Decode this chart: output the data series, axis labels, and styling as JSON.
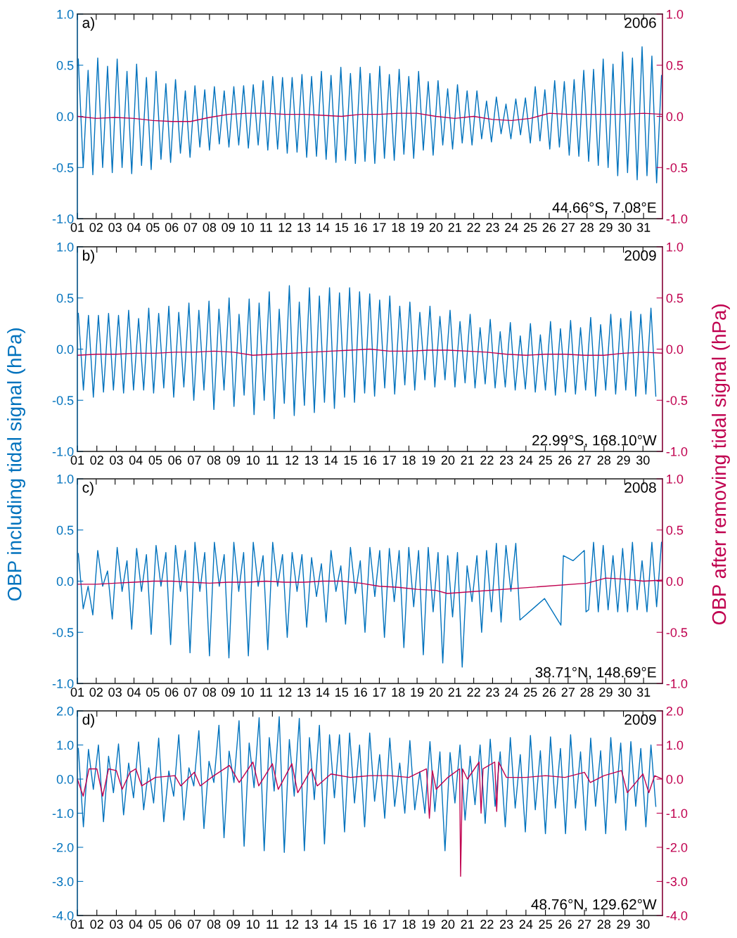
{
  "chart_data": [
    {
      "type": "line",
      "xlim": [
        1,
        32
      ],
      "ylim": [
        -1,
        1
      ],
      "y2lim": [
        -1,
        1
      ],
      "xticks": [
        {
          "value": 1,
          "label": "01"
        },
        {
          "value": 2,
          "label": "02"
        },
        {
          "value": 3,
          "label": "03"
        },
        {
          "value": 4,
          "label": "04"
        },
        {
          "value": 5,
          "label": "05"
        },
        {
          "value": 6,
          "label": "06"
        },
        {
          "value": 7,
          "label": "07"
        },
        {
          "value": 8,
          "label": "08"
        },
        {
          "value": 9,
          "label": "09"
        },
        10,
        11,
        12,
        13,
        14,
        15,
        16,
        17,
        18,
        19,
        20,
        21,
        22,
        23,
        24,
        25,
        26,
        27,
        28,
        29,
        30,
        31
      ],
      "yticks": [
        {
          "value": -1,
          "label": "-1.0"
        },
        {
          "value": -0.5,
          "label": "-0.5"
        },
        {
          "value": 0,
          "label": "0.0"
        },
        {
          "value": 0.5,
          "label": "0.5"
        },
        {
          "value": 1,
          "label": "1.0"
        }
      ],
      "y2ticks": [
        {
          "value": -1,
          "label": "-1.0"
        },
        {
          "value": -0.5,
          "label": "-0.5"
        },
        {
          "value": 0,
          "label": "0.0"
        },
        {
          "value": 0.5,
          "label": "0.5"
        },
        {
          "value": 1,
          "label": "1.0"
        }
      ],
      "annotations": [
        "a)",
        "2006",
        "44.66°S, 7.08°E"
      ],
      "x": [
        1.05,
        1.31,
        1.57,
        1.82,
        2.08,
        2.34,
        2.6,
        2.85,
        3.11,
        3.37,
        3.63,
        3.88,
        4.14,
        4.4,
        4.66,
        4.91,
        5.17,
        5.43,
        5.69,
        5.94,
        6.2,
        6.46,
        6.72,
        6.97,
        7.23,
        7.49,
        7.75,
        8.0,
        8.26,
        8.52,
        8.78,
        9.03,
        9.29,
        9.55,
        9.81,
        10.06,
        10.32,
        10.58,
        10.84,
        11.09,
        11.35,
        11.61,
        11.87,
        12.12,
        12.38,
        12.64,
        12.9,
        13.15,
        13.41,
        13.67,
        13.93,
        14.18,
        14.44,
        14.7,
        14.96,
        15.21,
        15.47,
        15.73,
        15.99,
        16.24,
        16.5,
        16.76,
        17.02,
        17.27,
        17.53,
        17.79,
        18.05,
        18.3,
        18.56,
        18.82,
        19.08,
        19.33,
        19.59,
        19.85,
        20.11,
        20.36,
        20.62,
        20.88,
        21.14,
        21.39,
        21.65,
        21.91,
        22.17,
        22.42,
        22.68,
        22.94,
        23.2,
        23.45,
        23.71,
        23.97,
        24.23,
        24.48,
        24.74,
        25.0,
        25.26,
        25.51,
        25.77,
        26.03,
        26.29,
        26.54,
        26.8,
        27.06,
        27.32,
        27.57,
        27.83,
        28.09,
        28.35,
        28.6,
        28.86,
        29.12,
        29.38,
        29.63,
        29.89,
        30.15,
        30.41,
        30.66,
        30.92,
        31.18,
        31.44,
        31.69,
        31.95
      ],
      "series": [
        {
          "color": "#0072bd",
          "values": [
            0.56,
            -0.5,
            0.45,
            -0.57,
            0.57,
            -0.5,
            0.49,
            -0.55,
            0.56,
            -0.5,
            0.44,
            -0.56,
            0.51,
            -0.48,
            0.38,
            -0.52,
            0.44,
            -0.42,
            0.32,
            -0.45,
            0.36,
            -0.36,
            0.25,
            -0.4,
            0.3,
            -0.3,
            0.26,
            -0.33,
            0.29,
            -0.27,
            0.25,
            -0.3,
            0.29,
            -0.28,
            0.3,
            -0.31,
            0.31,
            -0.28,
            0.35,
            -0.33,
            0.39,
            -0.32,
            0.38,
            -0.36,
            0.38,
            -0.35,
            0.41,
            -0.4,
            0.39,
            -0.39,
            0.44,
            -0.42,
            0.4,
            -0.45,
            0.48,
            -0.43,
            0.42,
            -0.46,
            0.48,
            -0.44,
            0.42,
            -0.46,
            0.49,
            -0.41,
            0.41,
            -0.43,
            0.46,
            -0.37,
            0.39,
            -0.41,
            0.44,
            -0.33,
            0.34,
            -0.38,
            0.35,
            -0.28,
            0.27,
            -0.32,
            0.31,
            -0.26,
            0.25,
            -0.28,
            0.25,
            -0.22,
            0.15,
            -0.25,
            0.19,
            -0.17,
            0.12,
            -0.22,
            0.17,
            -0.18,
            0.18,
            -0.26,
            0.29,
            -0.24,
            0.26,
            -0.32,
            0.35,
            -0.3,
            0.34,
            -0.38,
            0.36,
            -0.39,
            0.45,
            -0.44,
            0.46,
            -0.48,
            0.56,
            -0.5,
            0.51,
            -0.58,
            0.63,
            -0.55,
            0.57,
            -0.62,
            0.68,
            -0.58,
            0.59,
            -0.65,
            0.4
          ]
        },
        {
          "color": "#c0004f",
          "axis": "y2",
          "x": [
            1,
            2,
            3,
            4,
            5,
            6,
            7,
            8,
            9,
            10,
            11,
            12,
            13,
            14,
            15,
            16,
            17,
            18,
            19,
            20,
            21,
            22,
            23,
            24,
            25,
            26,
            27,
            28,
            29,
            30,
            31,
            32
          ],
          "values": [
            0.0,
            -0.02,
            -0.01,
            -0.02,
            -0.04,
            -0.05,
            -0.05,
            -0.01,
            0.02,
            0.03,
            0.03,
            0.02,
            0.02,
            0.01,
            0.0,
            0.02,
            0.02,
            0.03,
            0.03,
            0.0,
            -0.02,
            0.0,
            -0.03,
            -0.04,
            -0.02,
            0.03,
            0.02,
            0.02,
            0.02,
            0.02,
            0.03,
            0.02
          ]
        }
      ]
    },
    {
      "type": "line",
      "xlim": [
        1,
        31
      ],
      "ylim": [
        -1,
        1
      ],
      "y2lim": [
        -1,
        1
      ],
      "ylabel": "OBP including tidal signal (hPa)",
      "y2label": "OBP after removing tidal signal (hPa)",
      "xticks": [
        {
          "value": 1,
          "label": "01"
        },
        {
          "value": 2,
          "label": "02"
        },
        {
          "value": 3,
          "label": "03"
        },
        {
          "value": 4,
          "label": "04"
        },
        {
          "value": 5,
          "label": "05"
        },
        {
          "value": 6,
          "label": "06"
        },
        {
          "value": 7,
          "label": "07"
        },
        {
          "value": 8,
          "label": "08"
        },
        {
          "value": 9,
          "label": "09"
        },
        10,
        11,
        12,
        13,
        14,
        15,
        16,
        17,
        18,
        19,
        20,
        21,
        22,
        23,
        24,
        25,
        26,
        27,
        28,
        29,
        30
      ],
      "yticks": [
        {
          "value": -1,
          "label": "-1.0"
        },
        {
          "value": -0.5,
          "label": "-0.5"
        },
        {
          "value": 0,
          "label": "0.0"
        },
        {
          "value": 0.5,
          "label": "0.5"
        },
        {
          "value": 1,
          "label": "1.0"
        }
      ],
      "y2ticks": [
        {
          "value": -1,
          "label": "-1.0"
        },
        {
          "value": -0.5,
          "label": "-0.5"
        },
        {
          "value": 0,
          "label": "0.0"
        },
        {
          "value": 0.5,
          "label": "0.5"
        },
        {
          "value": 1,
          "label": "1.0"
        }
      ],
      "annotations": [
        "b)",
        "2009",
        "22.99°S, 168.10°W"
      ],
      "x": [
        1.05,
        1.31,
        1.57,
        1.82,
        2.08,
        2.34,
        2.6,
        2.85,
        3.11,
        3.37,
        3.63,
        3.88,
        4.14,
        4.4,
        4.66,
        4.91,
        5.17,
        5.43,
        5.69,
        5.94,
        6.2,
        6.46,
        6.72,
        6.97,
        7.23,
        7.49,
        7.75,
        8.0,
        8.26,
        8.52,
        8.78,
        9.03,
        9.29,
        9.55,
        9.81,
        10.06,
        10.32,
        10.58,
        10.84,
        11.09,
        11.35,
        11.61,
        11.87,
        12.12,
        12.38,
        12.64,
        12.9,
        13.15,
        13.41,
        13.67,
        13.93,
        14.18,
        14.44,
        14.7,
        14.96,
        15.21,
        15.47,
        15.73,
        15.99,
        16.24,
        16.5,
        16.76,
        17.02,
        17.27,
        17.53,
        17.79,
        18.05,
        18.3,
        18.56,
        18.82,
        19.08,
        19.33,
        19.59,
        19.85,
        20.11,
        20.36,
        20.62,
        20.88,
        21.14,
        21.39,
        21.65,
        21.91,
        22.17,
        22.42,
        22.68,
        22.94,
        23.2,
        23.45,
        23.71,
        23.97,
        24.23,
        24.48,
        24.74,
        25.0,
        25.26,
        25.51,
        25.77,
        26.03,
        26.29,
        26.54,
        26.8,
        27.06,
        27.32,
        27.57,
        27.83,
        28.09,
        28.35,
        28.6,
        28.86,
        29.12,
        29.38,
        29.63,
        29.89,
        30.15,
        30.41,
        30.66
      ],
      "series": [
        {
          "color": "#0072bd",
          "values": [
            0.35,
            -0.4,
            0.33,
            -0.47,
            0.33,
            -0.42,
            0.35,
            -0.4,
            0.33,
            -0.43,
            0.38,
            -0.4,
            0.3,
            -0.4,
            0.4,
            -0.43,
            0.35,
            -0.38,
            0.42,
            -0.47,
            0.36,
            -0.37,
            0.45,
            -0.5,
            0.38,
            -0.4,
            0.47,
            -0.59,
            0.39,
            -0.4,
            0.5,
            -0.56,
            0.34,
            -0.45,
            0.49,
            -0.64,
            0.45,
            -0.5,
            0.56,
            -0.68,
            0.39,
            -0.53,
            0.62,
            -0.65,
            0.46,
            -0.55,
            0.6,
            -0.62,
            0.52,
            -0.52,
            0.6,
            -0.58,
            0.55,
            -0.47,
            0.6,
            -0.52,
            0.56,
            -0.43,
            0.54,
            -0.46,
            0.48,
            -0.38,
            0.52,
            -0.44,
            0.42,
            -0.35,
            0.46,
            -0.4,
            0.36,
            -0.3,
            0.42,
            -0.37,
            0.32,
            -0.3,
            0.38,
            -0.37,
            0.27,
            -0.33,
            0.34,
            -0.38,
            0.21,
            -0.34,
            0.29,
            -0.38,
            0.17,
            -0.37,
            0.26,
            -0.4,
            0.13,
            -0.39,
            0.25,
            -0.42,
            0.14,
            -0.4,
            0.27,
            -0.45,
            0.2,
            -0.42,
            0.28,
            -0.44,
            0.21,
            -0.4,
            0.31,
            -0.46,
            0.24,
            -0.4,
            0.34,
            -0.44,
            0.3,
            -0.4,
            0.37,
            -0.46,
            0.34,
            -0.44,
            0.4,
            -0.46
          ]
        },
        {
          "color": "#c0004f",
          "axis": "y2",
          "x": [
            1,
            2,
            3,
            4,
            5,
            6,
            7,
            8,
            9,
            10,
            11,
            12,
            13,
            14,
            15,
            16,
            17,
            18,
            19,
            20,
            21,
            22,
            23,
            24,
            25,
            26,
            27,
            28,
            29,
            30,
            31
          ],
          "values": [
            -0.06,
            -0.05,
            -0.05,
            -0.04,
            -0.04,
            -0.03,
            -0.03,
            -0.02,
            -0.03,
            -0.06,
            -0.05,
            -0.04,
            -0.03,
            -0.02,
            -0.01,
            0.0,
            -0.02,
            -0.02,
            -0.01,
            -0.01,
            -0.02,
            -0.03,
            -0.05,
            -0.06,
            -0.05,
            -0.05,
            -0.06,
            -0.06,
            -0.04,
            -0.03,
            -0.04
          ]
        }
      ]
    },
    {
      "type": "line",
      "xlim": [
        1,
        32
      ],
      "ylim": [
        -1,
        1
      ],
      "y2lim": [
        -1,
        1
      ],
      "xticks": [
        {
          "value": 1,
          "label": "01"
        },
        {
          "value": 2,
          "label": "02"
        },
        {
          "value": 3,
          "label": "03"
        },
        {
          "value": 4,
          "label": "04"
        },
        {
          "value": 5,
          "label": "05"
        },
        {
          "value": 6,
          "label": "06"
        },
        {
          "value": 7,
          "label": "07"
        },
        {
          "value": 8,
          "label": "08"
        },
        {
          "value": 9,
          "label": "09"
        },
        10,
        11,
        12,
        13,
        14,
        15,
        16,
        17,
        18,
        19,
        20,
        21,
        22,
        23,
        24,
        25,
        26,
        27,
        28,
        29,
        30,
        31
      ],
      "yticks": [
        {
          "value": -1,
          "label": "-1.0"
        },
        {
          "value": -0.5,
          "label": "-0.5"
        },
        {
          "value": 0,
          "label": "0.0"
        },
        {
          "value": 0.5,
          "label": "0.5"
        },
        {
          "value": 1,
          "label": "1.0"
        }
      ],
      "y2ticks": [
        {
          "value": -1,
          "label": "-1.0"
        },
        {
          "value": -0.5,
          "label": "-0.5"
        },
        {
          "value": 0,
          "label": "0.0"
        },
        {
          "value": 0.5,
          "label": "0.5"
        },
        {
          "value": 1,
          "label": "1.0"
        }
      ],
      "annotations": [
        "c)",
        "2008",
        "38.71°N, 148.69°E"
      ],
      "series": [
        {
          "color": "#0072bd",
          "x": [
            1.05,
            1.31,
            1.57,
            1.82,
            2.08,
            2.34,
            2.6,
            2.85,
            3.11,
            3.37,
            3.63,
            3.88,
            4.14,
            4.4,
            4.66,
            4.91,
            5.17,
            5.43,
            5.69,
            5.94,
            6.2,
            6.46,
            6.72,
            6.97,
            7.23,
            7.49,
            7.75,
            8.0,
            8.26,
            8.52,
            8.78,
            9.03,
            9.29,
            9.55,
            9.81,
            10.06,
            10.32,
            10.58,
            10.84,
            11.09,
            11.35,
            11.61,
            11.87,
            12.12,
            12.38,
            12.64,
            12.9,
            13.15,
            13.41,
            13.67,
            13.93,
            14.18,
            14.44,
            14.7,
            14.96,
            15.21,
            15.47,
            15.73,
            15.99,
            16.24,
            16.5,
            16.76,
            17.02,
            17.27,
            17.53,
            17.79,
            18.05,
            18.3,
            18.56,
            18.82,
            19.08,
            19.33,
            19.59,
            19.85,
            20.11,
            20.36,
            20.62,
            20.88,
            21.14,
            21.39,
            21.65,
            21.91,
            22.17,
            22.42,
            22.68,
            22.94,
            23.2,
            23.45,
            23.71,
            23.97,
            24.23,
            24.45,
            25.75,
            26.62,
            26.75,
            27.26,
            27.86,
            27.95,
            28.09,
            28.35,
            28.6,
            28.86,
            29.12,
            29.38,
            29.63,
            29.89,
            30.15,
            30.41,
            30.66,
            30.92,
            31.18,
            31.44,
            31.69,
            31.95
          ],
          "values": [
            0.27,
            -0.27,
            -0.05,
            -0.33,
            0.3,
            -0.05,
            0.1,
            -0.37,
            0.33,
            -0.1,
            0.2,
            -0.47,
            0.32,
            -0.1,
            0.26,
            -0.52,
            0.35,
            -0.05,
            0.28,
            -0.62,
            0.35,
            -0.1,
            0.3,
            -0.7,
            0.38,
            -0.1,
            0.28,
            -0.73,
            0.38,
            -0.05,
            0.26,
            -0.75,
            0.38,
            -0.1,
            0.28,
            -0.73,
            0.38,
            -0.05,
            0.25,
            -0.67,
            0.38,
            -0.05,
            0.26,
            -0.55,
            0.28,
            -0.1,
            0.26,
            -0.45,
            0.23,
            -0.15,
            0.17,
            -0.4,
            0.3,
            -0.1,
            0.15,
            -0.42,
            0.33,
            -0.12,
            0.2,
            -0.5,
            0.33,
            -0.15,
            0.3,
            -0.55,
            0.32,
            -0.2,
            0.3,
            -0.65,
            0.33,
            -0.25,
            0.3,
            -0.72,
            0.33,
            -0.3,
            0.28,
            -0.8,
            0.25,
            -0.35,
            0.28,
            -0.84,
            0.15,
            -0.2,
            0.25,
            -0.5,
            0.3,
            -0.3,
            0.37,
            -0.4,
            0.35,
            -0.1,
            0.37,
            -0.38,
            -0.17,
            -0.43,
            0.25,
            0.2,
            0.3,
            -0.3,
            -0.28,
            0.38,
            -0.3,
            0.35,
            -0.28,
            0.25,
            -0.3,
            0.32,
            -0.3,
            0.38,
            -0.28,
            0.2,
            -0.3,
            0.38,
            -0.25,
            0.38
          ]
        },
        {
          "color": "#c0004f",
          "axis": "y2",
          "x": [
            1,
            2,
            3,
            4,
            5,
            6,
            7,
            8,
            9,
            10,
            11,
            12,
            13,
            14,
            15,
            16,
            17,
            18,
            19,
            20,
            20.6,
            28,
            29,
            30,
            31,
            32
          ],
          "values": [
            -0.03,
            -0.03,
            -0.02,
            -0.01,
            0.0,
            0.0,
            -0.01,
            -0.02,
            -0.01,
            -0.01,
            0.0,
            -0.01,
            -0.01,
            0.0,
            0.0,
            -0.02,
            -0.05,
            -0.06,
            -0.08,
            -0.09,
            -0.12,
            -0.02,
            0.03,
            0.02,
            0.0,
            0.01
          ]
        }
      ]
    },
    {
      "type": "line",
      "xlim": [
        1,
        31
      ],
      "ylim": [
        -4,
        2
      ],
      "y2lim": [
        -4,
        2
      ],
      "xticks": [
        {
          "value": 1,
          "label": "01"
        },
        {
          "value": 2,
          "label": "02"
        },
        {
          "value": 3,
          "label": "03"
        },
        {
          "value": 4,
          "label": "04"
        },
        {
          "value": 5,
          "label": "05"
        },
        {
          "value": 6,
          "label": "06"
        },
        {
          "value": 7,
          "label": "07"
        },
        {
          "value": 8,
          "label": "08"
        },
        {
          "value": 9,
          "label": "09"
        },
        10,
        11,
        12,
        13,
        14,
        15,
        16,
        17,
        18,
        19,
        20,
        21,
        22,
        23,
        24,
        25,
        26,
        27,
        28,
        29,
        30
      ],
      "yticks": [
        {
          "value": -4,
          "label": "-4.0"
        },
        {
          "value": -3,
          "label": "-3.0"
        },
        {
          "value": -2,
          "label": "-2.0"
        },
        {
          "value": -1,
          "label": "-1.0"
        },
        {
          "value": 0,
          "label": "0.0"
        },
        {
          "value": 1,
          "label": "1.0"
        },
        {
          "value": 2,
          "label": "2.0"
        }
      ],
      "y2ticks": [
        {
          "value": -4,
          "label": "-4.0"
        },
        {
          "value": -3,
          "label": "-3.0"
        },
        {
          "value": -2,
          "label": "-2.0"
        },
        {
          "value": -1,
          "label": "-1.0"
        },
        {
          "value": 0,
          "label": "0.0"
        },
        {
          "value": 1,
          "label": "1.0"
        },
        {
          "value": 2,
          "label": "2.0"
        }
      ],
      "annotations": [
        "d)",
        "2009",
        "48.76°N, 129.62°W"
      ],
      "x": [
        1.05,
        1.31,
        1.57,
        1.82,
        2.08,
        2.34,
        2.6,
        2.85,
        3.11,
        3.37,
        3.63,
        3.88,
        4.14,
        4.4,
        4.66,
        4.91,
        5.17,
        5.43,
        5.69,
        5.94,
        6.2,
        6.46,
        6.72,
        6.97,
        7.23,
        7.49,
        7.75,
        8.0,
        8.26,
        8.52,
        8.78,
        9.03,
        9.29,
        9.55,
        9.81,
        10.06,
        10.32,
        10.58,
        10.84,
        11.09,
        11.35,
        11.61,
        11.87,
        12.12,
        12.38,
        12.64,
        12.9,
        13.15,
        13.41,
        13.67,
        13.93,
        14.18,
        14.44,
        14.7,
        14.96,
        15.21,
        15.47,
        15.73,
        15.99,
        16.24,
        16.5,
        16.76,
        17.02,
        17.27,
        17.53,
        17.79,
        18.05,
        18.3,
        18.56,
        18.82,
        19.08,
        19.33,
        19.59,
        19.85,
        20.11,
        20.36,
        20.62,
        20.88,
        21.14,
        21.39,
        21.65,
        21.91,
        22.17,
        22.42,
        22.68,
        22.94,
        23.2,
        23.45,
        23.71,
        23.97,
        24.23,
        24.48,
        24.74,
        25.0,
        25.26,
        25.51,
        25.77,
        26.03,
        26.29,
        26.54,
        26.8,
        27.06,
        27.32,
        27.57,
        27.83,
        28.09,
        28.35,
        28.6,
        28.86,
        29.12,
        29.38,
        29.63,
        29.89,
        30.15,
        30.41,
        30.66
      ],
      "series": [
        {
          "color": "#0072bd",
          "values": [
            0.9,
            -1.4,
            0.87,
            -0.3,
            1.0,
            -1.25,
            0.67,
            -0.4,
            1.03,
            -1.05,
            0.47,
            -0.55,
            1.09,
            -0.9,
            0.33,
            -0.7,
            1.2,
            -1.25,
            0.24,
            -0.5,
            1.3,
            -1.2,
            0.33,
            -0.2,
            1.42,
            -1.45,
            0.52,
            -0.1,
            1.58,
            -1.72,
            0.82,
            -0.1,
            1.71,
            -1.97,
            1.06,
            -0.25,
            1.8,
            -2.1,
            1.22,
            -0.35,
            1.83,
            -2.15,
            1.16,
            -0.5,
            1.78,
            -2.1,
            1.22,
            -0.6,
            1.58,
            -1.9,
            1.3,
            -0.55,
            1.3,
            -1.55,
            1.35,
            -0.7,
            1.0,
            -1.4,
            1.35,
            -0.65,
            0.72,
            -1.15,
            1.2,
            -0.8,
            0.47,
            -1.0,
            1.13,
            -0.9,
            0.22,
            -1.0,
            1.1,
            -0.95,
            0.8,
            -2.1,
            0.78,
            -0.7,
            1.0,
            -1.2,
            0.67,
            -0.75,
            1.0,
            -1.3,
            1.17,
            -0.8,
            0.8,
            -1.4,
            1.22,
            -0.85,
            0.72,
            -1.55,
            1.28,
            -0.9,
            0.83,
            -1.6,
            1.24,
            -0.85,
            0.9,
            -1.6,
            1.3,
            -0.85,
            0.8,
            -1.5,
            1.2,
            -0.8,
            0.83,
            -1.6,
            1.22,
            -0.7,
            1.06,
            -1.5,
            1.1,
            -0.8,
            0.9,
            -1.4,
            1.0,
            -0.8
          ]
        },
        {
          "color": "#c0004f",
          "axis": "y2",
          "x": [
            1.0,
            1.3,
            1.6,
            2.0,
            2.3,
            2.6,
            3.0,
            3.3,
            3.7,
            4.0,
            4.3,
            5.0,
            6.0,
            6.3,
            7.0,
            7.3,
            8.0,
            8.8,
            9.3,
            10.0,
            10.3,
            11.0,
            11.3,
            12.0,
            12.3,
            13.0,
            13.3,
            14.0,
            15.0,
            16.0,
            17.0,
            18.0,
            18.9,
            19.05,
            19.2,
            19.4,
            20.0,
            20.6,
            20.65,
            20.75,
            21.0,
            21.6,
            21.7,
            21.8,
            22.4,
            22.5,
            22.6,
            23.0,
            24.0,
            25.0,
            26.0,
            27.0,
            27.3,
            28.0,
            28.9,
            29.2,
            30.0,
            30.3,
            30.6,
            31.0
          ],
          "values": [
            0.0,
            -0.5,
            0.3,
            0.3,
            -0.5,
            0.3,
            0.25,
            -0.3,
            0.2,
            0.3,
            -0.2,
            0.05,
            0.1,
            -0.2,
            0.2,
            -0.2,
            0.1,
            0.4,
            -0.1,
            0.5,
            -0.2,
            0.45,
            -0.3,
            0.45,
            -0.4,
            0.3,
            -0.2,
            0.15,
            0.05,
            0.1,
            0.1,
            0.05,
            0.3,
            -1.15,
            0.25,
            -0.3,
            0.05,
            0.3,
            -2.85,
            0.3,
            0.0,
            0.5,
            -1.0,
            0.3,
            0.5,
            -0.95,
            0.5,
            0.05,
            0.05,
            0.1,
            0.05,
            0.2,
            -0.1,
            0.1,
            0.25,
            -0.4,
            0.15,
            -0.4,
            0.1,
            0.0
          ]
        }
      ]
    }
  ]
}
